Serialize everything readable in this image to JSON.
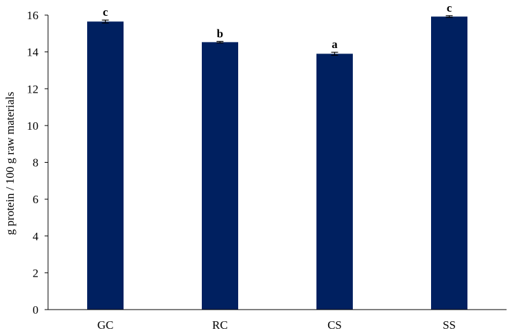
{
  "chart_data": {
    "type": "bar",
    "categories": [
      "GC",
      "RC",
      "CS",
      "SS"
    ],
    "values": [
      15.65,
      14.53,
      13.9,
      15.92
    ],
    "errors": [
      0.08,
      0.04,
      0.08,
      0.05
    ],
    "significance": [
      "c",
      "b",
      "a",
      "c"
    ],
    "ylabel": "g protein / 100 g raw materials",
    "ylim": [
      0,
      16
    ],
    "yticks": [
      0,
      2,
      4,
      6,
      8,
      10,
      12,
      14,
      16
    ],
    "grid": false,
    "bar_color": "#002060"
  }
}
